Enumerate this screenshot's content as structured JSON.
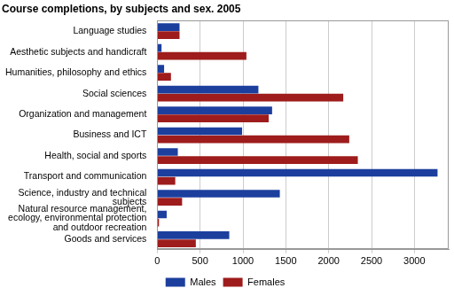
{
  "chart_data": {
    "type": "bar",
    "orientation": "horizontal",
    "title": "Course completions, by subjects and sex. 2005",
    "categories": [
      "Language studies",
      "Aesthetic subjects and handicraft",
      "Humanities, philosophy and ethics",
      "Social sciences",
      "Organization and management",
      "Business and ICT",
      "Health, social and sports",
      "Transport and communication",
      "Science, industry and technical subjects",
      "Natural resource management, ecology, environmental protection and outdoor recreation",
      "Goods and services"
    ],
    "series": [
      {
        "name": "Males",
        "color": "#1c3f9e",
        "values": [
          260,
          50,
          80,
          1180,
          1340,
          990,
          240,
          3270,
          1430,
          110,
          840
        ]
      },
      {
        "name": "Females",
        "color": "#9e1c1c",
        "values": [
          260,
          1040,
          160,
          2170,
          1300,
          2240,
          2340,
          210,
          290,
          20,
          450
        ]
      }
    ],
    "xlim": [
      0,
      3400
    ],
    "xticks": [
      0,
      500,
      1000,
      1500,
      2000,
      2500,
      3000
    ],
    "grid": true,
    "legend": "bottom"
  }
}
